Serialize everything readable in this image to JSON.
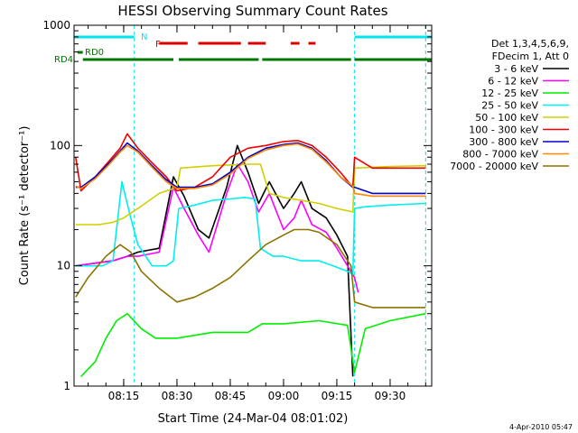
{
  "chart_data": {
    "type": "line",
    "title": "HESSI Observing Summary Count Rates",
    "xlabel": "Start Time (24-Mar-04 08:01:02)",
    "ylabel": "Count Rate (s⁻¹ detector⁻¹)",
    "y_scale": "log",
    "ylim": [
      1,
      1000
    ],
    "xlim": [
      "08:01:02",
      "09:41:42"
    ],
    "x_ticks": [
      "08:15",
      "08:30",
      "08:45",
      "09:00",
      "09:15",
      "09:30"
    ],
    "y_ticks": [
      "1",
      "10",
      "100",
      "1000"
    ],
    "grid": false,
    "legend_position": "right",
    "legend_header": [
      "Det 1,3,4,5,6,9,",
      "FDecim 1, Att 0"
    ],
    "timestamp": "4-Apr-2010 05:47",
    "flags": [
      {
        "label": "N",
        "color": "#00e5ee",
        "intervals": [
          [
            "08:01:02",
            "08:18:00"
          ],
          [
            "09:20:00",
            "09:41:42"
          ]
        ]
      },
      {
        "label": "F",
        "color": "#dd0000",
        "intervals": [
          [
            "08:25:00",
            "08:33:00"
          ],
          [
            "08:36:00",
            "08:48:00"
          ],
          [
            "08:50:00",
            "08:55:00"
          ],
          [
            "09:02:00",
            "09:04:30"
          ],
          [
            "09:07:00",
            "09:09:00"
          ]
        ]
      },
      {
        "label": "RD0",
        "color": "#007700",
        "intervals": [
          [
            "08:02:00",
            "08:03:30"
          ]
        ]
      },
      {
        "label": "RD4",
        "color": "#007700",
        "intervals": [
          [
            "08:03:30",
            "08:29:00"
          ],
          [
            "08:30:30",
            "08:53:00"
          ],
          [
            "08:54:00",
            "09:19:00"
          ],
          [
            "09:20:00",
            "09:41:42"
          ]
        ]
      }
    ],
    "vlines": [
      {
        "color": "#00e5ee",
        "times": [
          "08:18:00",
          "09:20:00",
          "09:40:00"
        ]
      }
    ],
    "series": [
      {
        "name": "3 - 6 keV",
        "color": "#000000",
        "times": [
          "08:01:30",
          "08:12:00",
          "08:16:00",
          "08:19:00",
          "08:25:00",
          "08:29:00",
          "08:32:00",
          "08:36:00",
          "08:39:00",
          "08:44:00",
          "08:47:00",
          "08:50:00",
          "08:53:00",
          "08:56:00",
          "09:00:00",
          "09:03:00",
          "09:05:00",
          "09:08:00",
          "09:12:00",
          "09:15:00",
          "09:18:00",
          "09:19:30"
        ],
        "values": [
          10,
          11,
          12,
          13,
          14,
          55,
          38,
          20,
          17,
          45,
          100,
          60,
          33,
          50,
          30,
          40,
          50,
          30,
          25,
          18,
          12,
          1.2
        ]
      },
      {
        "name": "6 - 12 keV",
        "color": "#ff00ff",
        "times": [
          "08:01:30",
          "08:12:00",
          "08:16:00",
          "08:19:00",
          "08:25:00",
          "08:29:00",
          "08:32:00",
          "08:36:00",
          "08:39:00",
          "08:44:00",
          "08:47:00",
          "08:50:00",
          "08:53:00",
          "08:56:00",
          "09:00:00",
          "09:03:00",
          "09:05:00",
          "09:08:00",
          "09:12:00",
          "09:15:00",
          "09:18:00",
          "09:20:00",
          "09:21:00"
        ],
        "values": [
          10,
          11,
          12,
          12,
          13,
          45,
          30,
          18,
          13,
          40,
          70,
          50,
          28,
          40,
          20,
          25,
          35,
          22,
          19,
          14,
          10,
          8,
          6
        ]
      },
      {
        "name": "12 - 25 keV",
        "color": "#00ee00",
        "times": [
          "08:03:00",
          "08:07:00",
          "08:10:00",
          "08:13:00",
          "08:16:00",
          "08:20:00",
          "08:24:00",
          "08:28:00",
          "08:30:00",
          "08:40:00",
          "08:50:00",
          "08:54:00",
          "09:00:00",
          "09:10:00",
          "09:18:00",
          "09:20:00",
          "09:23:00",
          "09:30:00",
          "09:40:00"
        ],
        "values": [
          1.2,
          1.6,
          2.5,
          3.5,
          4,
          3,
          2.5,
          2.5,
          2.5,
          2.8,
          2.8,
          3.3,
          3.3,
          3.5,
          3.2,
          1.3,
          3,
          3.5,
          4
        ]
      },
      {
        "name": "25 - 50 keV",
        "color": "#00eeee",
        "times": [
          "08:01:30",
          "08:09:00",
          "08:12:00",
          "08:14:30",
          "08:17:00",
          "08:19:00",
          "08:23:00",
          "08:27:00",
          "08:29:00",
          "08:30:30",
          "08:35:00",
          "08:40:00",
          "08:45:00",
          "08:49:00",
          "08:52:00",
          "08:53:30",
          "08:57:00",
          "09:00:00",
          "09:05:00",
          "09:10:00",
          "09:14:00",
          "09:18:00",
          "09:19:30",
          "09:20:00",
          "09:23:00",
          "09:30:00",
          "09:40:00"
        ],
        "values": [
          10,
          10,
          11,
          50,
          25,
          15,
          10,
          10,
          11,
          30,
          32,
          35,
          36,
          37,
          36,
          14,
          12,
          12,
          11,
          11,
          10,
          9,
          8.5,
          30,
          31,
          32,
          33
        ]
      },
      {
        "name": "50 - 100 keV",
        "color": "#d0d000",
        "times": [
          "08:01:30",
          "08:08:00",
          "08:12:00",
          "08:15:00",
          "08:19:00",
          "08:25:00",
          "08:30:00",
          "08:31:00",
          "08:40:00",
          "08:50:00",
          "08:53:30",
          "08:56:00",
          "09:00:00",
          "09:05:00",
          "09:10:00",
          "09:15:00",
          "09:19:30",
          "09:20:00",
          "09:25:00",
          "09:30:00",
          "09:40:00"
        ],
        "values": [
          22,
          22,
          23,
          25,
          30,
          40,
          45,
          65,
          68,
          70,
          70,
          40,
          37,
          35,
          33,
          30,
          28,
          65,
          66,
          67,
          68
        ]
      },
      {
        "name": "100 - 300 keV",
        "color": "#ee0000",
        "times": [
          "08:01:30",
          "08:03:00",
          "08:07:00",
          "08:11:00",
          "08:14:00",
          "08:16:00",
          "08:19:00",
          "08:23:00",
          "08:27:00",
          "08:30:00",
          "08:35:00",
          "08:40:00",
          "08:45:00",
          "08:50:00",
          "08:55:00",
          "09:00:00",
          "09:04:00",
          "09:08:00",
          "09:12:00",
          "09:16:00",
          "09:19:30",
          "09:20:00",
          "09:25:00",
          "09:30:00",
          "09:40:00"
        ],
        "values": [
          80,
          42,
          55,
          75,
          95,
          125,
          95,
          72,
          55,
          42,
          45,
          55,
          80,
          95,
          100,
          108,
          110,
          100,
          80,
          60,
          45,
          80,
          65,
          65,
          65
        ]
      },
      {
        "name": "300 - 800 keV",
        "color": "#0000cc",
        "times": [
          "08:01:30",
          "08:03:00",
          "08:07:00",
          "08:11:00",
          "08:14:00",
          "08:16:00",
          "08:19:00",
          "08:23:00",
          "08:27:00",
          "08:30:00",
          "08:35:00",
          "08:40:00",
          "08:45:00",
          "08:50:00",
          "08:55:00",
          "09:00:00",
          "09:04:00",
          "09:08:00",
          "09:12:00",
          "09:16:00",
          "09:19:30",
          "09:20:00",
          "09:25:00",
          "09:30:00",
          "09:40:00"
        ],
        "values": [
          45,
          45,
          55,
          72,
          90,
          105,
          90,
          68,
          52,
          45,
          45,
          48,
          60,
          80,
          95,
          102,
          105,
          95,
          75,
          55,
          45,
          45,
          40,
          40,
          40
        ]
      },
      {
        "name": "800 - 7000 keV",
        "color": "#ff8800",
        "times": [
          "08:01:30",
          "08:03:00",
          "08:07:00",
          "08:11:00",
          "08:14:00",
          "08:16:00",
          "08:19:00",
          "08:23:00",
          "08:27:00",
          "08:30:00",
          "08:35:00",
          "08:40:00",
          "08:45:00",
          "08:50:00",
          "08:55:00",
          "09:00:00",
          "09:04:00",
          "09:08:00",
          "09:12:00",
          "09:16:00",
          "09:19:30",
          "09:20:00",
          "09:25:00",
          "09:30:00",
          "09:40:00"
        ],
        "values": [
          46,
          44,
          53,
          70,
          88,
          100,
          88,
          66,
          50,
          44,
          44,
          47,
          58,
          78,
          92,
          100,
          103,
          93,
          73,
          55,
          46,
          40,
          38,
          38,
          38
        ]
      },
      {
        "name": "7000 - 20000 keV",
        "color": "#8b7300",
        "times": [
          "08:01:30",
          "08:05:00",
          "08:10:00",
          "08:14:00",
          "08:17:00",
          "08:20:00",
          "08:25:00",
          "08:30:00",
          "08:35:00",
          "08:40:00",
          "08:45:00",
          "08:50:00",
          "08:55:00",
          "09:00:00",
          "09:03:00",
          "09:07:00",
          "09:10:00",
          "09:15:00",
          "09:19:00",
          "09:20:00",
          "09:25:00",
          "09:30:00",
          "09:40:00"
        ],
        "values": [
          5.5,
          8,
          12,
          15,
          13,
          9,
          6.5,
          5,
          5.5,
          6.5,
          8,
          11,
          15,
          18,
          20,
          20,
          19,
          15,
          10,
          5,
          4.5,
          4.5,
          4.5
        ]
      }
    ]
  }
}
